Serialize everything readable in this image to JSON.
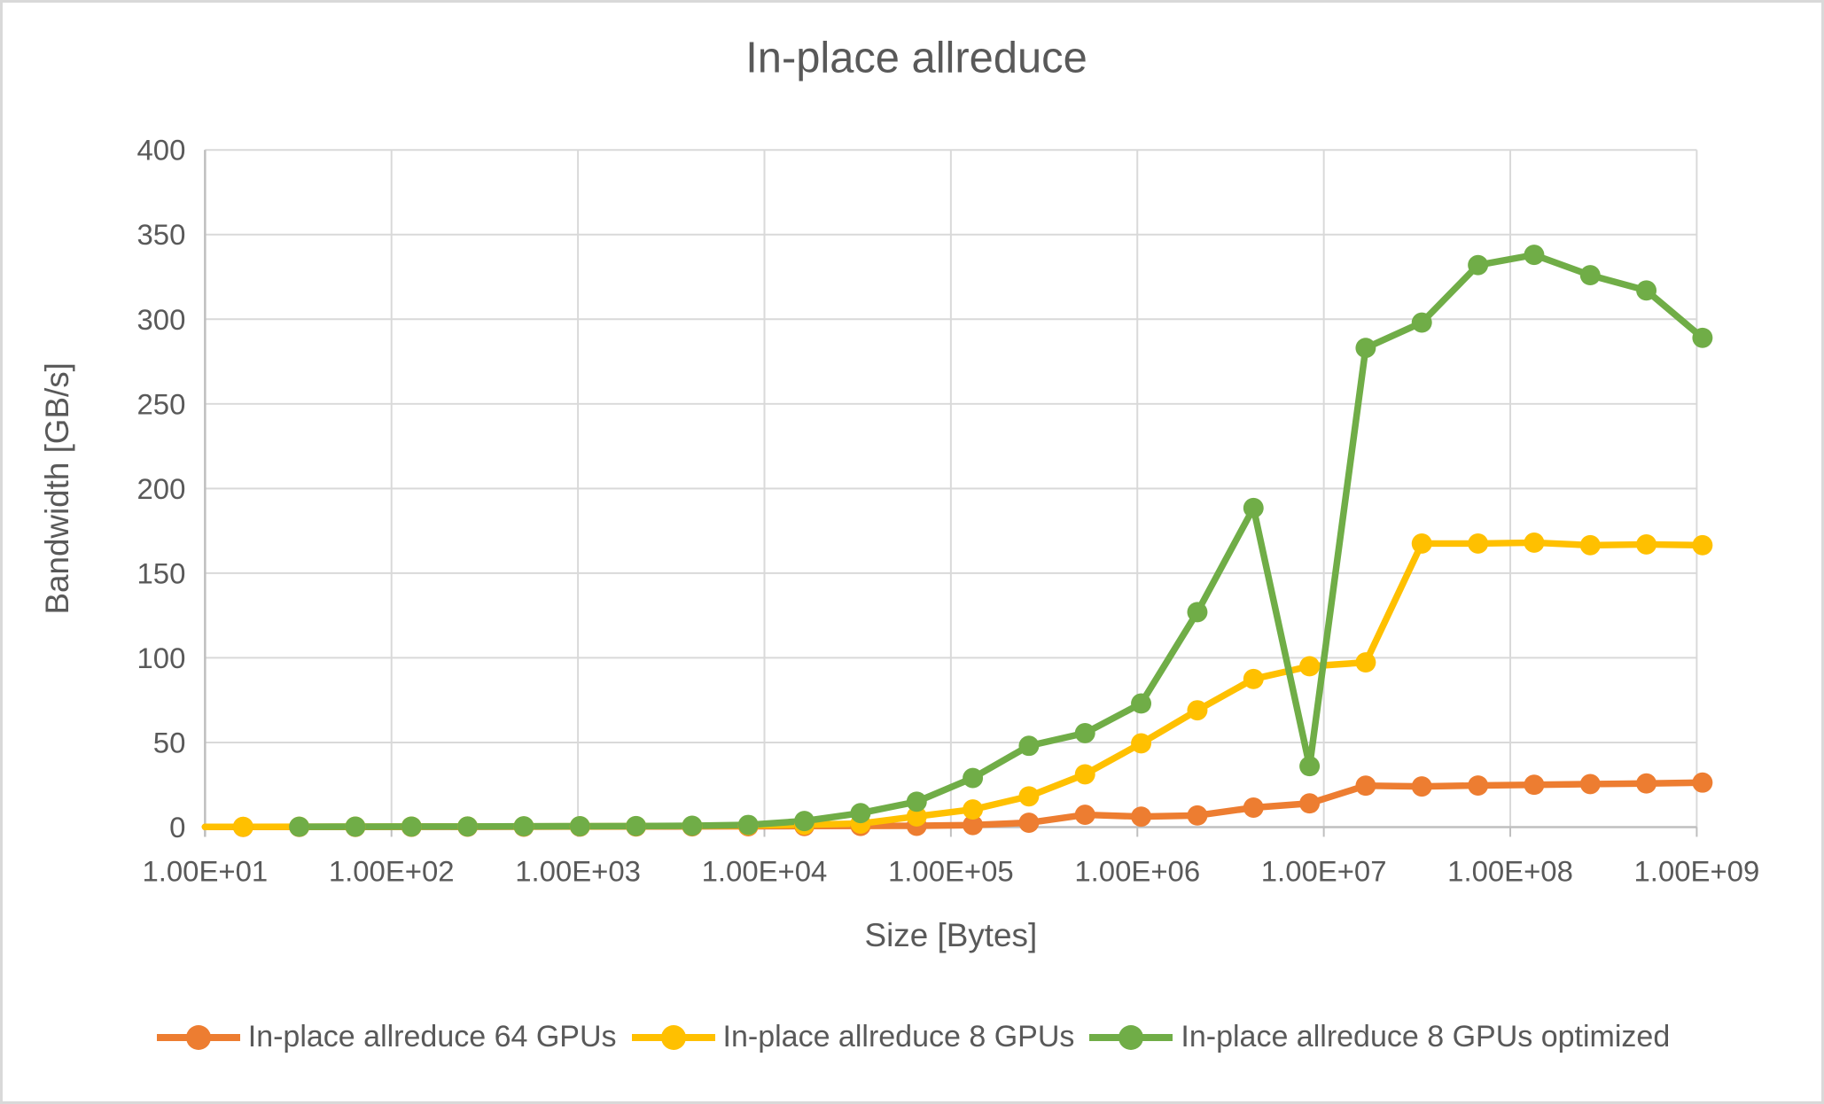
{
  "chart_data": {
    "type": "line",
    "title": "In-place allreduce",
    "xlabel": "Size [Bytes]",
    "ylabel": "Bandwidth [GB/s]",
    "x_scale": "log10",
    "xlim": [
      10,
      1000000000
    ],
    "ylim": [
      0,
      400
    ],
    "grid": true,
    "legend_position": "bottom",
    "y_ticks": [
      0,
      50,
      100,
      150,
      200,
      250,
      300,
      350,
      400
    ],
    "x_ticks": [
      {
        "value": 10,
        "label": "1.00E+01"
      },
      {
        "value": 100,
        "label": "1.00E+02"
      },
      {
        "value": 1000,
        "label": "1.00E+03"
      },
      {
        "value": 10000,
        "label": "1.00E+04"
      },
      {
        "value": 100000,
        "label": "1.00E+05"
      },
      {
        "value": 1000000,
        "label": "1.00E+06"
      },
      {
        "value": 10000000,
        "label": "1.00E+07"
      },
      {
        "value": 100000000,
        "label": "1.00E+08"
      },
      {
        "value": 1000000000,
        "label": "1.00E+09"
      }
    ],
    "series": [
      {
        "name": "In-place allreduce 64 GPUs",
        "color": "#ED7D31",
        "starts_at_axis": true,
        "sizes": [
          16,
          32,
          64,
          128,
          256,
          512,
          1024,
          2048,
          4096,
          8192,
          16384,
          32768,
          65536,
          131072,
          262144,
          524288,
          1048576,
          2097152,
          4194304,
          8388608,
          16777216,
          33554432,
          67108864,
          134217728,
          268435456,
          536870912,
          1073741824
        ],
        "values": [
          0.1,
          0.1,
          0.1,
          0.15,
          0.2,
          0.25,
          0.3,
          0.35,
          0.4,
          0.5,
          0.6,
          0.7,
          0.8,
          1.2,
          2.6,
          7.3,
          6.2,
          6.9,
          11.5,
          14,
          24.5,
          24,
          24.6,
          25,
          25.4,
          25.8,
          26.3
        ]
      },
      {
        "name": "In-place allreduce 8 GPUs",
        "color": "#FFC000",
        "starts_at_axis": true,
        "sizes": [
          16,
          32,
          64,
          128,
          256,
          512,
          1024,
          2048,
          4096,
          8192,
          16384,
          32768,
          65536,
          131072,
          262144,
          524288,
          1048576,
          2097152,
          4194304,
          8388608,
          16777216,
          33554432,
          67108864,
          134217728,
          268435456,
          536870912,
          1073741824
        ],
        "values": [
          0.15,
          0.2,
          0.25,
          0.3,
          0.35,
          0.4,
          0.45,
          0.55,
          0.7,
          1.0,
          1.4,
          2.1,
          6.3,
          10.4,
          18.2,
          31.2,
          49.5,
          69,
          87.5,
          95,
          97.3,
          167.5,
          167.5,
          168,
          166.5,
          167,
          166.5
        ]
      },
      {
        "name": "In-place allreduce 8 GPUs optimized",
        "color": "#70AD47",
        "starts_at_axis": false,
        "sizes": [
          32,
          64,
          128,
          256,
          512,
          1024,
          2048,
          4096,
          8192,
          16384,
          32768,
          65536,
          131072,
          262144,
          524288,
          1048576,
          2097152,
          4194304,
          8388608,
          16777216,
          33554432,
          67108864,
          134217728,
          268435456,
          536870912,
          1073741824
        ],
        "values": [
          0.2,
          0.25,
          0.3,
          0.35,
          0.45,
          0.5,
          0.6,
          0.8,
          1.3,
          3.6,
          8.3,
          15,
          29,
          48,
          55.5,
          73,
          127,
          188.5,
          36,
          283,
          298,
          332,
          338,
          326,
          317,
          289
        ]
      }
    ],
    "style_colors": {
      "gridline": "#D9D9D9",
      "axis_line": "#BFBFBF",
      "text": "#595959",
      "frame_border": "#D9D9D9",
      "background": "#FFFFFF"
    }
  }
}
